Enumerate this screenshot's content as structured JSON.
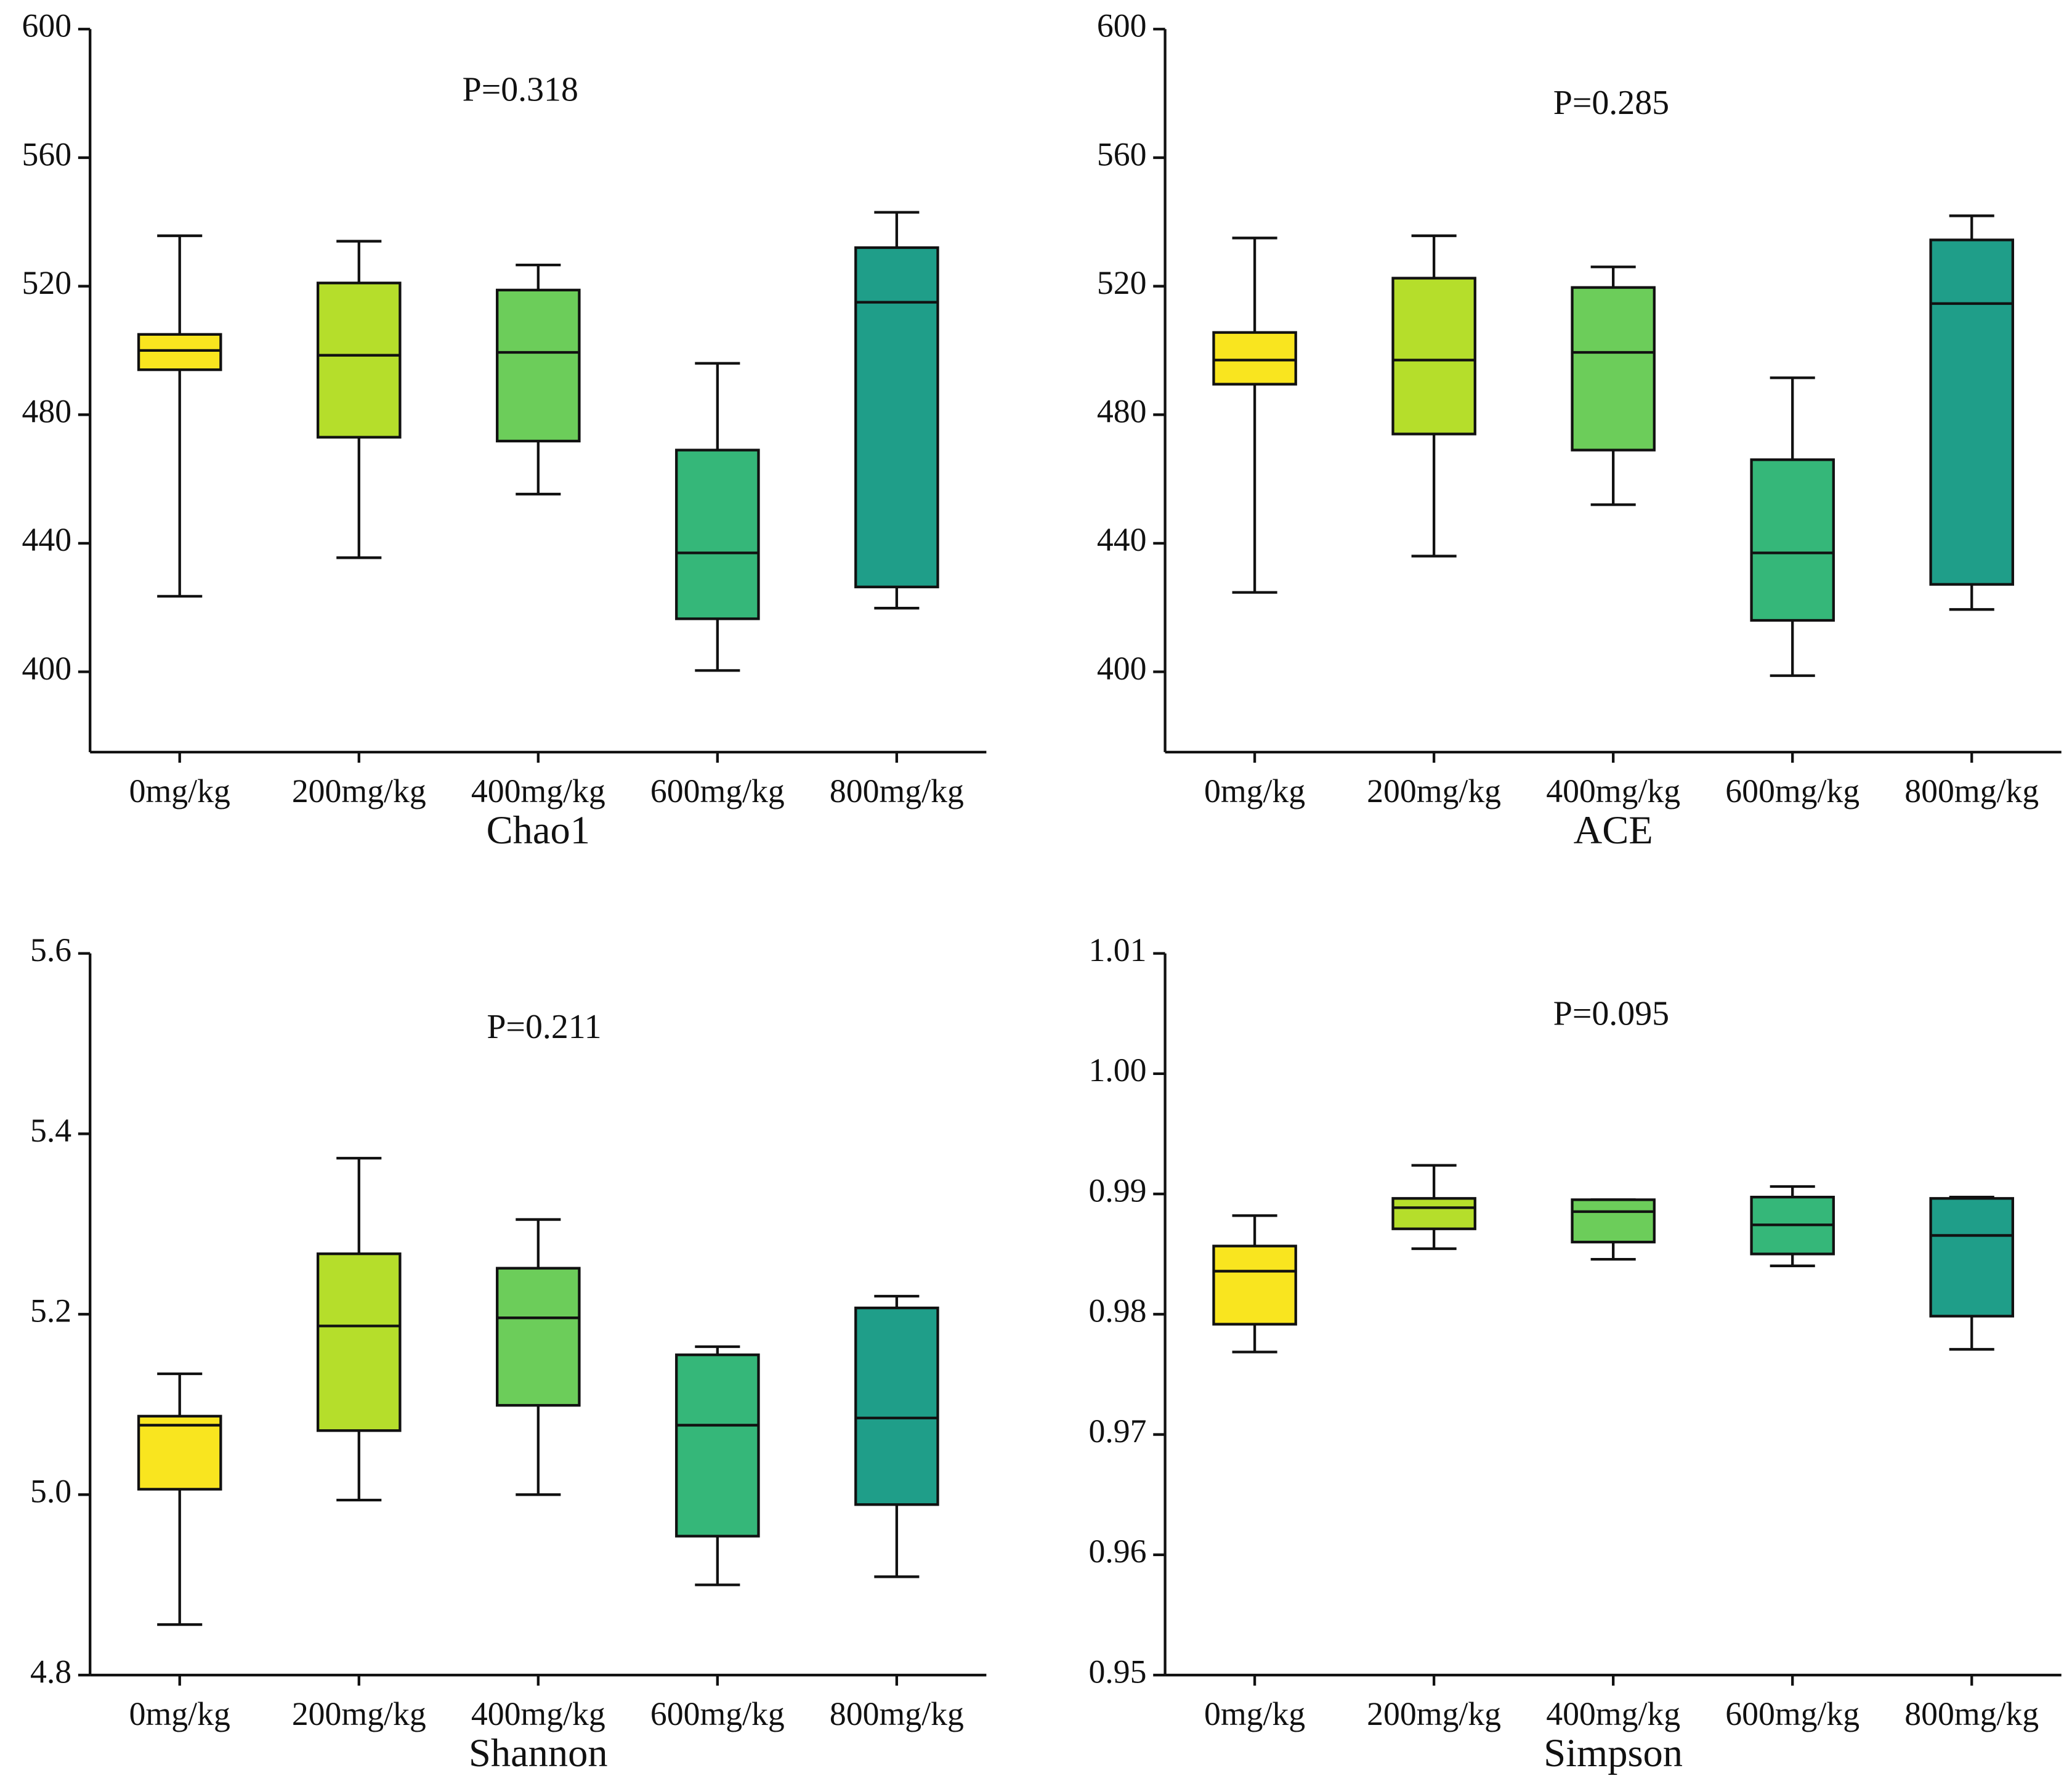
{
  "chart_data": [
    {
      "type": "box",
      "annotation": "P=0.318",
      "x_label": "Chao1",
      "categories": [
        "0mg/kg",
        "200mg/kg",
        "400mg/kg",
        "600mg/kg",
        "800mg/kg"
      ],
      "colors": [
        "#f9e51f",
        "#b5de2b",
        "#6ccd5a",
        "#35b779",
        "#1f9e89"
      ],
      "boxes": [
        {
          "min": 423.5,
          "q1": 494,
          "median": 500,
          "q3": 505,
          "max": 535.7
        },
        {
          "min": 435.5,
          "q1": 473,
          "median": 498.5,
          "q3": 521,
          "max": 534
        },
        {
          "min": 455.3,
          "q1": 471.8,
          "median": 499.4,
          "q3": 518.8,
          "max": 526.6
        },
        {
          "min": 400.4,
          "q1": 416.5,
          "median": 437,
          "q3": 469,
          "max": 496
        },
        {
          "min": 419.8,
          "q1": 426.4,
          "median": 515,
          "q3": 532,
          "max": 543
        }
      ],
      "ylim": [
        375,
        600
      ],
      "yticks": [
        400,
        440,
        480,
        520,
        560,
        600
      ]
    },
    {
      "type": "box",
      "annotation": "P=0.285",
      "x_label": "ACE",
      "categories": [
        "0mg/kg",
        "200mg/kg",
        "400mg/kg",
        "600mg/kg",
        "800mg/kg"
      ],
      "colors": [
        "#f9e51f",
        "#b5de2b",
        "#6ccd5a",
        "#35b779",
        "#1f9e89"
      ],
      "boxes": [
        {
          "min": 424.7,
          "q1": 489.5,
          "median": 497,
          "q3": 505.6,
          "max": 535
        },
        {
          "min": 436,
          "q1": 474,
          "median": 497,
          "q3": 522.5,
          "max": 535.7
        },
        {
          "min": 452,
          "q1": 469,
          "median": 499.4,
          "q3": 519.6,
          "max": 526
        },
        {
          "min": 398.8,
          "q1": 416,
          "median": 437,
          "q3": 466,
          "max": 491.5
        },
        {
          "min": 419.4,
          "q1": 427.2,
          "median": 514.6,
          "q3": 534.4,
          "max": 541.9
        }
      ],
      "ylim": [
        375,
        600
      ],
      "yticks": [
        400,
        440,
        480,
        520,
        560,
        600
      ]
    },
    {
      "type": "box",
      "annotation": "P=0.211",
      "x_label": "Shannon",
      "categories": [
        "0mg/kg",
        "200mg/kg",
        "400mg/kg",
        "600mg/kg",
        "800mg/kg"
      ],
      "colors": [
        "#f9e51f",
        "#b5de2b",
        "#6ccd5a",
        "#35b779",
        "#1f9e89"
      ],
      "boxes": [
        {
          "min": 4.856,
          "q1": 5.006,
          "median": 5.077,
          "q3": 5.087,
          "max": 5.134
        },
        {
          "min": 4.994,
          "q1": 5.071,
          "median": 5.187,
          "q3": 5.267,
          "max": 5.373
        },
        {
          "min": 5.0,
          "q1": 5.099,
          "median": 5.196,
          "q3": 5.251,
          "max": 5.305
        },
        {
          "min": 4.9,
          "q1": 4.954,
          "median": 5.077,
          "q3": 5.155,
          "max": 5.164
        },
        {
          "min": 4.909,
          "q1": 4.989,
          "median": 5.085,
          "q3": 5.207,
          "max": 5.22
        }
      ],
      "ylim": [
        4.8,
        5.6
      ],
      "yticks": [
        4.8,
        {
          "value": 5,
          "label": "5.0"
        },
        5.2,
        5.4,
        5.6
      ]
    },
    {
      "type": "box",
      "annotation": "P=0.095",
      "x_label": "Simpson",
      "categories": [
        "0mg/kg",
        "200mg/kg",
        "400mg/kg",
        "600mg/kg",
        "800mg/kg"
      ],
      "colors": [
        "#f9e51f",
        "#b5de2b",
        "#6ccd5a",
        "#35b779",
        "#1f9e89"
      ],
      "boxes": [
        {
          "min": 0.97686,
          "q1": 0.97917,
          "median": 0.98358,
          "q3": 0.98567,
          "max": 0.9882
        },
        {
          "min": 0.98545,
          "q1": 0.9871,
          "median": 0.98886,
          "q3": 0.98963,
          "max": 0.99238
        },
        {
          "min": 0.98457,
          "q1": 0.986,
          "median": 0.98853,
          "q3": 0.98952,
          "max": 0.98952
        },
        {
          "min": 0.98402,
          "q1": 0.98501,
          "median": 0.98743,
          "q3": 0.98974,
          "max": 0.99062
        },
        {
          "min": 0.97708,
          "q1": 0.97984,
          "median": 0.98655,
          "q3": 0.98963,
          "max": 0.98974
        }
      ],
      "ylim": [
        0.95,
        1.01
      ],
      "yticks": [
        0.95,
        0.96,
        0.97,
        0.98,
        0.99,
        {
          "value": 1,
          "label": "1.00"
        },
        1.01
      ]
    }
  ]
}
